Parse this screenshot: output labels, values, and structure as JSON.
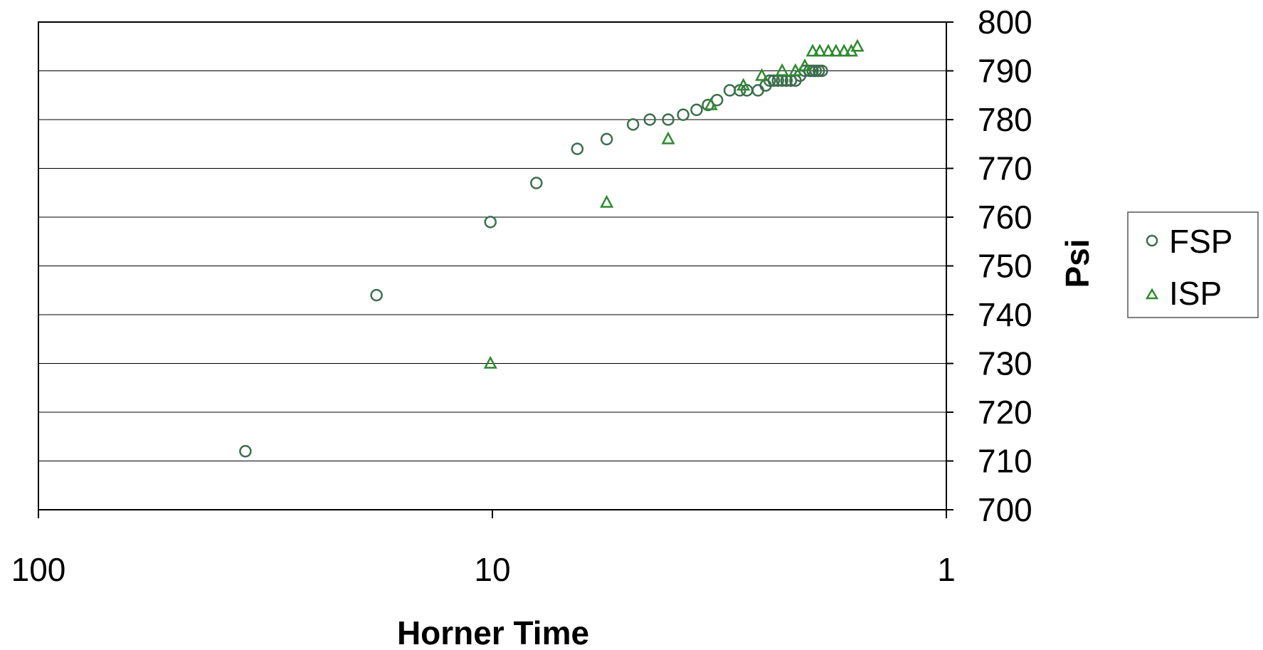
{
  "chart_data": {
    "type": "scatter",
    "title": "",
    "xlabel": "Horner Time",
    "ylabel": "Psi",
    "x_scale": "log",
    "x_reversed": true,
    "xlim": [
      100,
      1
    ],
    "ylim": [
      700,
      800
    ],
    "y_axis_side": "right",
    "grid": "horizontal",
    "legend": "right",
    "x_ticks": [
      "100",
      "10",
      "1"
    ],
    "y_ticks": [
      "700",
      "710",
      "720",
      "730",
      "740",
      "750",
      "760",
      "770",
      "780",
      "790",
      "800"
    ],
    "series": [
      {
        "name": "FSP",
        "marker": "circle",
        "color": "#3c6e4e",
        "points": [
          [
            35,
            712
          ],
          [
            18,
            744
          ],
          [
            10.1,
            759
          ],
          [
            8.0,
            767
          ],
          [
            6.5,
            774
          ],
          [
            5.6,
            776
          ],
          [
            4.9,
            779
          ],
          [
            4.5,
            780
          ],
          [
            4.1,
            780
          ],
          [
            3.8,
            781
          ],
          [
            3.55,
            782
          ],
          [
            3.35,
            783
          ],
          [
            3.2,
            784
          ],
          [
            3.0,
            786
          ],
          [
            2.85,
            786
          ],
          [
            2.75,
            786
          ],
          [
            2.6,
            786
          ],
          [
            2.5,
            787
          ],
          [
            2.45,
            788
          ],
          [
            2.4,
            788
          ],
          [
            2.35,
            788
          ],
          [
            2.3,
            788
          ],
          [
            2.25,
            788
          ],
          [
            2.2,
            788
          ],
          [
            2.15,
            788
          ],
          [
            2.1,
            789
          ],
          [
            2.05,
            790
          ],
          [
            2.0,
            790
          ],
          [
            1.97,
            790
          ],
          [
            1.94,
            790
          ],
          [
            1.91,
            790
          ],
          [
            1.88,
            790
          ]
        ]
      },
      {
        "name": "ISP",
        "marker": "triangle",
        "color": "#2f8a2f",
        "points": [
          [
            10.1,
            730
          ],
          [
            5.6,
            763
          ],
          [
            4.1,
            776
          ],
          [
            3.3,
            783
          ],
          [
            2.8,
            787
          ],
          [
            2.55,
            789
          ],
          [
            2.3,
            790
          ],
          [
            2.15,
            790
          ],
          [
            2.05,
            791
          ],
          [
            1.97,
            794
          ],
          [
            1.9,
            794
          ],
          [
            1.82,
            794
          ],
          [
            1.75,
            794
          ],
          [
            1.68,
            794
          ],
          [
            1.62,
            794
          ],
          [
            1.57,
            795
          ]
        ]
      }
    ]
  }
}
